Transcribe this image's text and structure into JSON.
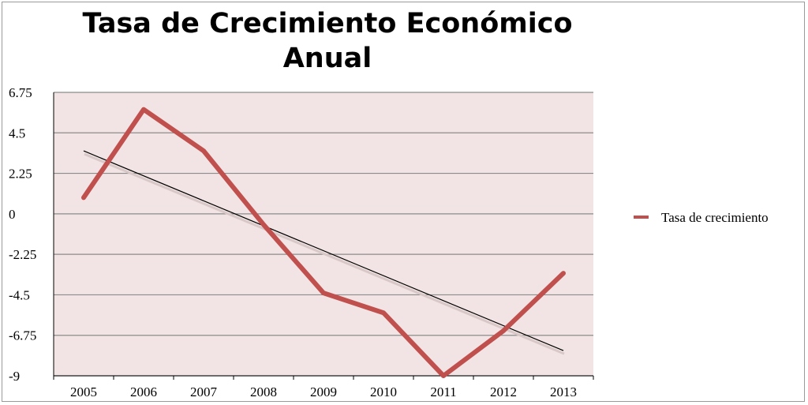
{
  "chart_data": {
    "type": "line",
    "title": "Tasa de Crecimiento Económico Anual",
    "xlabel": "",
    "ylabel": "",
    "categories": [
      "2005",
      "2006",
      "2007",
      "2008",
      "2009",
      "2010",
      "2011",
      "2012",
      "2013"
    ],
    "series": [
      {
        "name": "Tasa de crecimiento",
        "values": [
          0.9,
          5.8,
          3.5,
          -0.6,
          -4.4,
          -5.5,
          -9.0,
          -6.5,
          -3.3
        ]
      }
    ],
    "trendline": {
      "type": "linear",
      "start": 3.5,
      "end": -7.6
    },
    "ylim": [
      -9,
      6.75
    ],
    "yticks": [
      "6.75",
      "4.5",
      "2.25",
      "0",
      "-2.25",
      "-4.5",
      "-6.75",
      "-9"
    ],
    "grid": true,
    "legend_position": "right",
    "colors": {
      "series": "#c0504d",
      "trendline": "#000000",
      "plot_background": "#f2e4e4",
      "gridline": "#8c8c8c"
    }
  }
}
